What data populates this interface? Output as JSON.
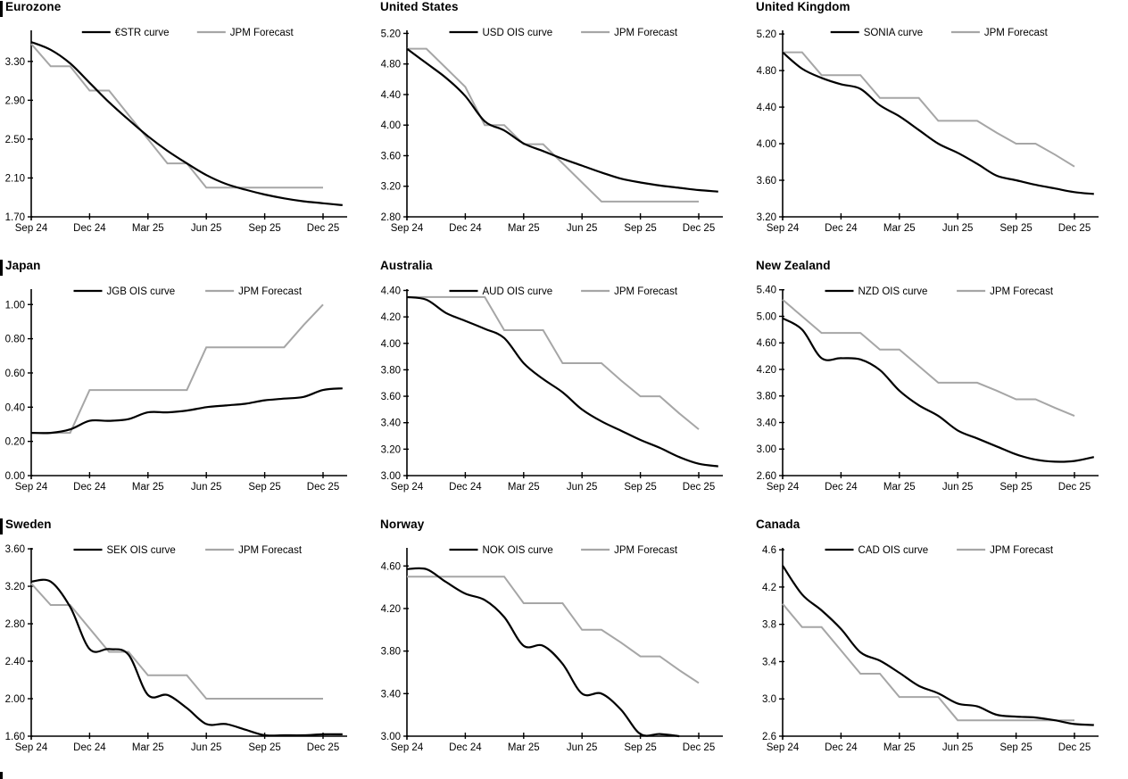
{
  "colors": {
    "curve": "#000000",
    "forecast": "#a6a6a6",
    "axis": "#000000",
    "text": "#000000"
  },
  "chart_data": [
    {
      "type": "line",
      "title": "Eurozone",
      "x_tick_labels": [
        "Sep 24",
        "Dec 24",
        "Mar 25",
        "Jun 25",
        "Sep 25",
        "Dec 25"
      ],
      "x_tick_positions": [
        0,
        3,
        6,
        9,
        12,
        15
      ],
      "y_tick_labels": [
        "1.70",
        "2.10",
        "2.50",
        "2.90",
        "3.30"
      ],
      "ylim": [
        1.7,
        3.62
      ],
      "grid": false,
      "legend_position": "top-center",
      "series": [
        {
          "name": "€STR curve",
          "color_key": "curve",
          "smooth": true,
          "values": [
            3.5,
            3.42,
            3.28,
            3.08,
            2.88,
            2.7,
            2.53,
            2.38,
            2.25,
            2.13,
            2.04,
            1.98,
            1.93,
            1.89,
            1.86,
            1.84,
            1.82
          ]
        },
        {
          "name": "JPM Forecast",
          "color_key": "forecast",
          "smooth": false,
          "values": [
            3.48,
            3.25,
            3.25,
            3.0,
            3.0,
            2.75,
            2.5,
            2.25,
            2.25,
            2.0,
            2.0,
            2.0,
            2.0,
            2.0,
            2.0,
            2.0
          ]
        }
      ]
    },
    {
      "type": "line",
      "title": "United States",
      "x_tick_labels": [
        "Sep 24",
        "Dec 24",
        "Mar 25",
        "Jun 25",
        "Sep 25",
        "Dec 25"
      ],
      "x_tick_positions": [
        0,
        3,
        6,
        9,
        12,
        15
      ],
      "y_tick_labels": [
        "2.80",
        "3.20",
        "3.60",
        "4.00",
        "4.40",
        "4.80",
        "5.20"
      ],
      "ylim": [
        2.8,
        5.24
      ],
      "grid": false,
      "legend_position": "top-center",
      "series": [
        {
          "name": "USD OIS curve",
          "color_key": "curve",
          "smooth": true,
          "values": [
            5.0,
            4.81,
            4.62,
            4.38,
            4.05,
            3.93,
            3.76,
            3.66,
            3.56,
            3.47,
            3.38,
            3.3,
            3.25,
            3.21,
            3.18,
            3.15,
            3.13
          ]
        },
        {
          "name": "JPM Forecast",
          "color_key": "forecast",
          "smooth": false,
          "values": [
            5.0,
            5.0,
            4.75,
            4.5,
            4.0,
            4.0,
            3.75,
            3.75,
            3.5,
            3.25,
            3.0,
            3.0,
            3.0,
            3.0,
            3.0,
            3.0
          ]
        }
      ]
    },
    {
      "type": "line",
      "title": "United Kingdom",
      "x_tick_labels": [
        "Sep 24",
        "Dec 24",
        "Mar 25",
        "Jun 25",
        "Sep 25",
        "Dec 25"
      ],
      "x_tick_positions": [
        0,
        3,
        6,
        9,
        12,
        15
      ],
      "y_tick_labels": [
        "3.20",
        "3.60",
        "4.00",
        "4.40",
        "4.80",
        "5.20"
      ],
      "ylim": [
        3.2,
        5.24
      ],
      "grid": false,
      "legend_position": "top-center",
      "series": [
        {
          "name": "SONIA curve",
          "color_key": "curve",
          "smooth": true,
          "values": [
            5.0,
            4.82,
            4.72,
            4.65,
            4.6,
            4.42,
            4.3,
            4.15,
            4.0,
            3.9,
            3.78,
            3.65,
            3.6,
            3.55,
            3.51,
            3.47,
            3.45
          ]
        },
        {
          "name": "JPM Forecast",
          "color_key": "forecast",
          "smooth": false,
          "values": [
            5.0,
            5.0,
            4.75,
            4.75,
            4.75,
            4.5,
            4.5,
            4.5,
            4.25,
            4.25,
            4.25,
            4.12,
            4.0,
            4.0,
            3.88,
            3.75
          ]
        }
      ]
    },
    {
      "type": "line",
      "title": "Japan",
      "x_tick_labels": [
        "Sep 24",
        "Dec 24",
        "Mar 25",
        "Jun 25",
        "Sep 25",
        "Dec 25"
      ],
      "x_tick_positions": [
        0,
        3,
        6,
        9,
        12,
        15
      ],
      "y_tick_labels": [
        "0.00",
        "0.20",
        "0.40",
        "0.60",
        "0.80",
        "1.00"
      ],
      "ylim": [
        0.0,
        1.09
      ],
      "grid": false,
      "legend_position": "top-center",
      "series": [
        {
          "name": "JGB OIS curve",
          "color_key": "curve",
          "smooth": true,
          "values": [
            0.25,
            0.25,
            0.27,
            0.32,
            0.32,
            0.33,
            0.37,
            0.37,
            0.38,
            0.4,
            0.41,
            0.42,
            0.44,
            0.45,
            0.46,
            0.5,
            0.51
          ]
        },
        {
          "name": "JPM Forecast",
          "color_key": "forecast",
          "smooth": false,
          "values": [
            0.25,
            0.25,
            0.25,
            0.5,
            0.5,
            0.5,
            0.5,
            0.5,
            0.5,
            0.75,
            0.75,
            0.75,
            0.75,
            0.75,
            0.88,
            1.0
          ]
        }
      ]
    },
    {
      "type": "line",
      "title": "Australia",
      "x_tick_labels": [
        "Sep 24",
        "Dec 24",
        "Mar 25",
        "Jun 25",
        "Sep 25",
        "Dec 25"
      ],
      "x_tick_positions": [
        0,
        3,
        6,
        9,
        12,
        15
      ],
      "y_tick_labels": [
        "3.00",
        "3.20",
        "3.40",
        "3.60",
        "3.80",
        "4.00",
        "4.20",
        "4.40"
      ],
      "ylim": [
        3.0,
        4.41
      ],
      "grid": false,
      "legend_position": "top-center",
      "series": [
        {
          "name": "AUD OIS curve",
          "color_key": "curve",
          "smooth": true,
          "values": [
            4.35,
            4.33,
            4.23,
            4.17,
            4.11,
            4.04,
            3.85,
            3.73,
            3.63,
            3.5,
            3.41,
            3.34,
            3.27,
            3.21,
            3.14,
            3.09,
            3.07
          ]
        },
        {
          "name": "JPM Forecast",
          "color_key": "forecast",
          "smooth": false,
          "values": [
            4.35,
            4.35,
            4.35,
            4.35,
            4.35,
            4.1,
            4.1,
            4.1,
            3.85,
            3.85,
            3.85,
            3.72,
            3.6,
            3.6,
            3.47,
            3.35
          ]
        }
      ]
    },
    {
      "type": "line",
      "title": "New Zealand",
      "x_tick_labels": [
        "Sep 24",
        "Dec 24",
        "Mar 25",
        "Jun 25",
        "Sep 25",
        "Dec 25"
      ],
      "x_tick_positions": [
        0,
        3,
        6,
        9,
        12,
        15
      ],
      "y_tick_labels": [
        "2.60",
        "3.00",
        "3.40",
        "3.80",
        "4.20",
        "4.60",
        "5.00",
        "5.40"
      ],
      "ylim": [
        2.6,
        5.41
      ],
      "grid": false,
      "legend_position": "top-center",
      "series": [
        {
          "name": "NZD OIS curve",
          "color_key": "curve",
          "smooth": true,
          "values": [
            4.97,
            4.8,
            4.37,
            4.37,
            4.35,
            4.19,
            3.88,
            3.66,
            3.5,
            3.28,
            3.16,
            3.04,
            2.92,
            2.84,
            2.81,
            2.82,
            2.88
          ]
        },
        {
          "name": "JPM Forecast",
          "color_key": "forecast",
          "smooth": false,
          "values": [
            5.25,
            5.0,
            4.75,
            4.75,
            4.75,
            4.5,
            4.5,
            4.25,
            4.0,
            4.0,
            4.0,
            3.88,
            3.75,
            3.75,
            3.62,
            3.5
          ]
        }
      ]
    },
    {
      "type": "line",
      "title": "Sweden",
      "x_tick_labels": [
        "Sep 24",
        "Dec 24",
        "Mar 25",
        "Jun 25",
        "Sep 25",
        "Dec 25"
      ],
      "x_tick_positions": [
        0,
        3,
        6,
        9,
        12,
        15
      ],
      "y_tick_labels": [
        "1.60",
        "2.00",
        "2.40",
        "2.80",
        "3.20",
        "3.60"
      ],
      "ylim": [
        1.6,
        3.61
      ],
      "grid": false,
      "legend_position": "top-center",
      "series": [
        {
          "name": "SEK OIS curve",
          "color_key": "curve",
          "smooth": true,
          "values": [
            3.25,
            3.25,
            2.98,
            2.53,
            2.53,
            2.47,
            2.04,
            2.04,
            1.9,
            1.73,
            1.73,
            1.67,
            1.61,
            1.61,
            1.61,
            1.62,
            1.62
          ]
        },
        {
          "name": "JPM Forecast",
          "color_key": "forecast",
          "smooth": false,
          "values": [
            3.23,
            3.0,
            3.0,
            2.75,
            2.5,
            2.5,
            2.25,
            2.25,
            2.25,
            2.0,
            2.0,
            2.0,
            2.0,
            2.0,
            2.0,
            2.0
          ]
        }
      ]
    },
    {
      "type": "line",
      "title": "Norway",
      "x_tick_labels": [
        "Sep 24",
        "Dec 24",
        "Mar 25",
        "Jun 25",
        "Sep 25",
        "Dec 25"
      ],
      "x_tick_positions": [
        0,
        3,
        6,
        9,
        12,
        15
      ],
      "y_tick_labels": [
        "3.00",
        "3.40",
        "3.80",
        "4.20",
        "4.60"
      ],
      "ylim": [
        3.0,
        4.77
      ],
      "grid": false,
      "legend_position": "top-center",
      "series": [
        {
          "name": "NOK OIS curve",
          "color_key": "curve",
          "smooth": true,
          "values": [
            4.57,
            4.57,
            4.45,
            4.34,
            4.28,
            4.12,
            3.85,
            3.85,
            3.68,
            3.4,
            3.4,
            3.25,
            3.02,
            3.02,
            3.0
          ]
        },
        {
          "name": "JPM Forecast",
          "color_key": "forecast",
          "smooth": false,
          "values": [
            4.5,
            4.5,
            4.5,
            4.5,
            4.5,
            4.5,
            4.25,
            4.25,
            4.25,
            4.0,
            4.0,
            3.88,
            3.75,
            3.75,
            3.62,
            3.5
          ]
        }
      ]
    },
    {
      "type": "line",
      "title": "Canada",
      "x_tick_labels": [
        "Sep 24",
        "Dec 24",
        "Mar 25",
        "Jun 25",
        "Sep 25",
        "Dec 25"
      ],
      "x_tick_positions": [
        0,
        3,
        6,
        9,
        12,
        15
      ],
      "y_tick_labels": [
        "2.6",
        "3.0",
        "3.4",
        "3.8",
        "4.2",
        "4.6"
      ],
      "ylim": [
        2.6,
        4.62
      ],
      "grid": false,
      "legend_position": "top-center",
      "series": [
        {
          "name": "CAD OIS curve",
          "color_key": "curve",
          "smooth": true,
          "values": [
            4.43,
            4.12,
            3.95,
            3.75,
            3.5,
            3.41,
            3.28,
            3.14,
            3.06,
            2.95,
            2.92,
            2.83,
            2.81,
            2.8,
            2.77,
            2.73,
            2.72
          ]
        },
        {
          "name": "JPM Forecast",
          "color_key": "forecast",
          "smooth": false,
          "values": [
            4.02,
            3.77,
            3.77,
            3.52,
            3.27,
            3.27,
            3.02,
            3.02,
            3.02,
            2.77,
            2.77,
            2.77,
            2.77,
            2.77,
            2.77,
            2.77
          ]
        }
      ]
    }
  ]
}
